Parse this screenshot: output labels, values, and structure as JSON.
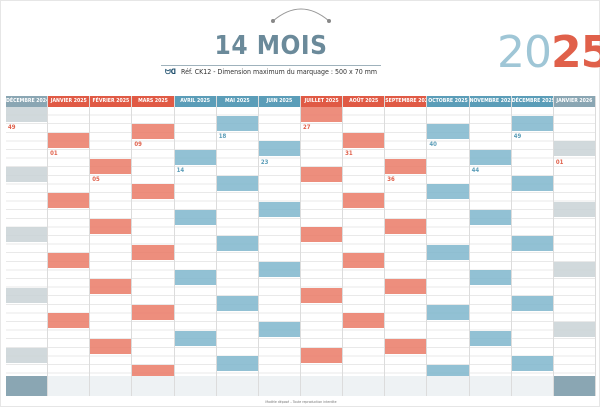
{
  "title": "14 MOIS",
  "subtitle": {
    "logo": "ᗢᗡ",
    "text": "Réf. CK12 - Dimension maximum du marquage : 500 x 70 mm"
  },
  "year": {
    "part_a": "20",
    "part_b": "25"
  },
  "colors": {
    "blue": "#5b9db8",
    "red": "#e05a45",
    "gray": "#8aa6b3"
  },
  "months": [
    {
      "label": "DÉCEMBRE 2024",
      "color": "gray"
    },
    {
      "label": "JANVIER 2025",
      "color": "red"
    },
    {
      "label": "FÉVRIER 2025",
      "color": "red"
    },
    {
      "label": "MARS 2025",
      "color": "red"
    },
    {
      "label": "AVRIL 2025",
      "color": "blue"
    },
    {
      "label": "MAI 2025",
      "color": "blue"
    },
    {
      "label": "JUIN 2025",
      "color": "blue"
    },
    {
      "label": "JUILLET 2025",
      "color": "red"
    },
    {
      "label": "AOÛT 2025",
      "color": "red"
    },
    {
      "label": "SEPTEMBRE 2025",
      "color": "red"
    },
    {
      "label": "OCTOBRE 2025",
      "color": "blue"
    },
    {
      "label": "NOVEMBRE 2025",
      "color": "blue"
    },
    {
      "label": "DÉCEMBRE 2025",
      "color": "blue"
    },
    {
      "label": "JANVIER 2026",
      "color": "gray"
    }
  ],
  "week_numbers": [
    "49",
    "01",
    "05",
    "09",
    "14",
    "18",
    "23",
    "27",
    "31",
    "36",
    "40",
    "44",
    "49",
    "01"
  ],
  "footer": "Modèle déposé – Toute reproduction interdite"
}
